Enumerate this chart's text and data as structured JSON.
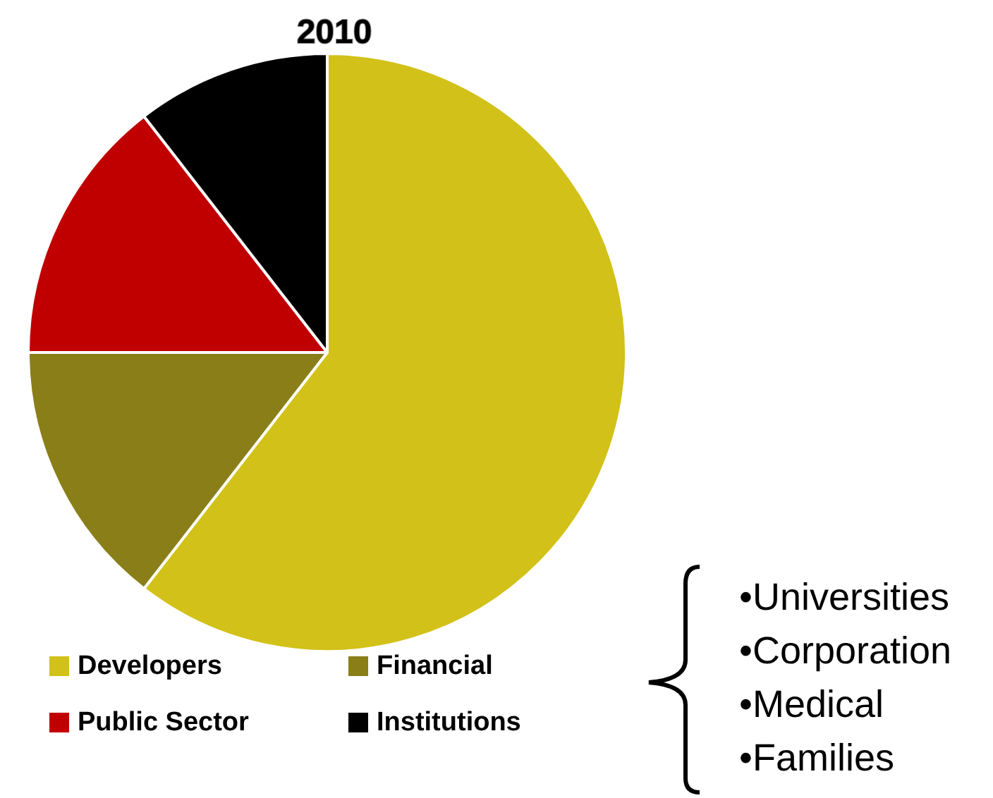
{
  "chart_data": {
    "type": "pie",
    "title": "2010",
    "categories": [
      "Developers",
      "Financial",
      "Public Sector",
      "Institutions"
    ],
    "values": [
      60.5,
      14.5,
      14.5,
      10.5
    ],
    "colors": [
      "#d2c118",
      "#8a7e19",
      "#c00000",
      "#000000"
    ],
    "legend": "bottom",
    "annotations": [
      "•Universities",
      "•Corporation",
      "•Medical",
      "•Families"
    ]
  }
}
